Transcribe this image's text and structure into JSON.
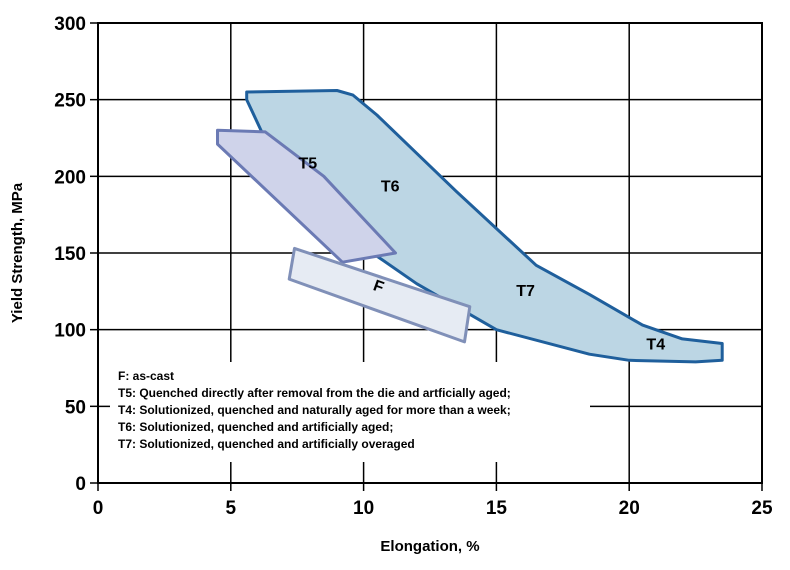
{
  "chart_data": {
    "type": "area",
    "xlabel": "Elongation, %",
    "ylabel": "Yield Strength, MPa",
    "xlim": [
      0,
      25
    ],
    "ylim": [
      0,
      300
    ],
    "xticks": [
      "0",
      "5",
      "10",
      "15",
      "20",
      "25"
    ],
    "yticks": [
      "0",
      "50",
      "100",
      "150",
      "200",
      "250",
      "300"
    ],
    "grid": true,
    "regions": [
      {
        "name": "T6",
        "label": "T6",
        "label_at": [
          11.0,
          190
        ],
        "fill": "#bcd6e4",
        "stroke": "#1f5f9c",
        "points": [
          [
            5.6,
            255
          ],
          [
            9.0,
            256
          ],
          [
            9.6,
            253
          ],
          [
            10.5,
            240
          ],
          [
            12.0,
            215
          ],
          [
            13.5,
            190
          ],
          [
            16.5,
            142
          ],
          [
            18.5,
            123
          ],
          [
            20.5,
            103
          ],
          [
            22.0,
            94
          ],
          [
            23.5,
            91
          ],
          [
            23.5,
            80
          ],
          [
            22.5,
            79
          ],
          [
            20.0,
            80
          ],
          [
            18.5,
            84
          ],
          [
            15.0,
            100
          ],
          [
            12.0,
            130
          ],
          [
            9.0,
            166
          ],
          [
            7.0,
            198
          ],
          [
            5.6,
            250
          ]
        ]
      },
      {
        "name": "T7",
        "label": "T7",
        "label_at": [
          16.1,
          122
        ]
      },
      {
        "name": "T4",
        "label": "T4",
        "label_at": [
          21.0,
          87
        ]
      },
      {
        "name": "T5",
        "label": "T5",
        "label_at": [
          7.9,
          205
        ],
        "fill": "#cfd3ea",
        "stroke": "#6b7ab4",
        "points": [
          [
            4.5,
            230
          ],
          [
            6.3,
            229
          ],
          [
            8.5,
            200
          ],
          [
            11.2,
            150
          ],
          [
            9.2,
            144
          ],
          [
            4.5,
            221
          ]
        ]
      },
      {
        "name": "F",
        "label": "F",
        "label_at": [
          10.5,
          125
        ],
        "label_rotation": 20,
        "fill": "#e6ebf3",
        "stroke": "#8090b8",
        "points": [
          [
            7.4,
            153
          ],
          [
            14.0,
            115
          ],
          [
            13.8,
            92
          ],
          [
            7.2,
            133
          ]
        ]
      }
    ],
    "legend": {
      "placement": "bottom-left",
      "lines": [
        "F: as-cast",
        "T5: Quenched directly after removal from the die and artficially aged;",
        "T4: Solutionized, quenched and naturally aged for more than a week;",
        "T6: Solutionized, quenched and artificially aged;",
        "T7: Solutionized, quenched and artificially overaged"
      ]
    }
  }
}
